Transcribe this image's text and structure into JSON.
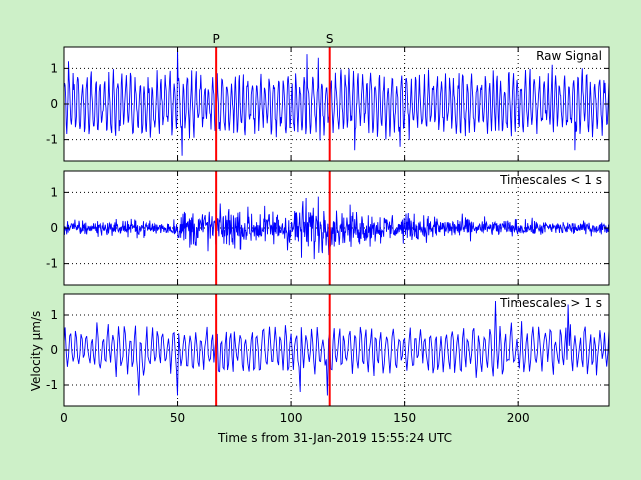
{
  "figure": {
    "background": "#cdf0c8",
    "plot_background": "#ffffff",
    "signal_color": "#0000ff",
    "marker_color": "#ff0000",
    "xlabel": "Time s from 31-Jan-2019 15:55:24 UTC",
    "ylabel_prefix": "Velocity ",
    "ylabel_mu": "μ",
    "ylabel_suffix": "m/s"
  },
  "chart_data": [
    {
      "type": "line",
      "legend": "Raw Signal",
      "xlim": [
        0,
        240
      ],
      "ylim": [
        -1.6,
        1.6
      ],
      "yticks": [
        1,
        0,
        -1
      ],
      "ytick_labels": [
        "1",
        "0",
        "-1"
      ],
      "xticks": [
        0,
        50,
        100,
        150,
        200
      ],
      "grid": true,
      "legend_position": "top-right",
      "markers": [
        {
          "label": "P",
          "x": 67
        },
        {
          "label": "S",
          "x": 117
        }
      ],
      "series": [
        {
          "amplitude": 0.75,
          "period_s": 2.0,
          "sample_step_s": 0.25,
          "peaks": [
            [
              2,
              1.2
            ],
            [
              50,
              1.6
            ],
            [
              52,
              -1.45
            ],
            [
              107,
              1.4
            ],
            [
              112,
              1.3
            ],
            [
              128,
              -1.3
            ],
            [
              148,
              -1.2
            ],
            [
              215,
              1.1
            ],
            [
              225,
              -1.3
            ]
          ]
        }
      ]
    },
    {
      "type": "line",
      "legend": "Timescales < 1 s",
      "xlim": [
        0,
        240
      ],
      "ylim": [
        -1.6,
        1.6
      ],
      "yticks": [
        1,
        0,
        -1
      ],
      "ytick_labels": [
        "1",
        "0",
        "-1"
      ],
      "xticks": [
        0,
        50,
        100,
        150,
        200
      ],
      "grid": true,
      "legend_position": "top-right",
      "markers": [
        {
          "label": "P",
          "x": 67
        },
        {
          "label": "S",
          "x": 117
        }
      ],
      "series": [
        {
          "amplitude": 0.2,
          "sample_step_s": 0.2,
          "envelope": [
            [
              0,
              0.2
            ],
            [
              48,
              0.2
            ],
            [
              52,
              0.45
            ],
            [
              60,
              0.55
            ],
            [
              80,
              0.5
            ],
            [
              95,
              0.45
            ],
            [
              102,
              0.65
            ],
            [
              112,
              0.75
            ],
            [
              118,
              0.5
            ],
            [
              140,
              0.38
            ],
            [
              165,
              0.3
            ],
            [
              190,
              0.22
            ],
            [
              240,
              0.15
            ]
          ]
        }
      ]
    },
    {
      "type": "line",
      "legend": "Timescales > 1 s",
      "xlim": [
        0,
        240
      ],
      "ylim": [
        -1.6,
        1.6
      ],
      "yticks": [
        1,
        0,
        -1
      ],
      "ytick_labels": [
        "1",
        "0",
        "-1"
      ],
      "xticks": [
        0,
        50,
        100,
        150,
        200
      ],
      "xtick_labels": [
        "0",
        "50",
        "100",
        "150",
        "200"
      ],
      "grid": true,
      "legend_position": "top-right",
      "markers": [
        {
          "label": "P",
          "x": 67
        },
        {
          "label": "S",
          "x": 117
        }
      ],
      "series": [
        {
          "amplitude": 0.6,
          "period_s": 2.5,
          "sample_step_s": 0.5,
          "peaks": [
            [
              33,
              -1.3
            ],
            [
              50,
              -1.3
            ],
            [
              104,
              -1.2
            ],
            [
              116,
              -1.3
            ],
            [
              190,
              1.4
            ],
            [
              222,
              1.3
            ]
          ]
        }
      ]
    }
  ]
}
